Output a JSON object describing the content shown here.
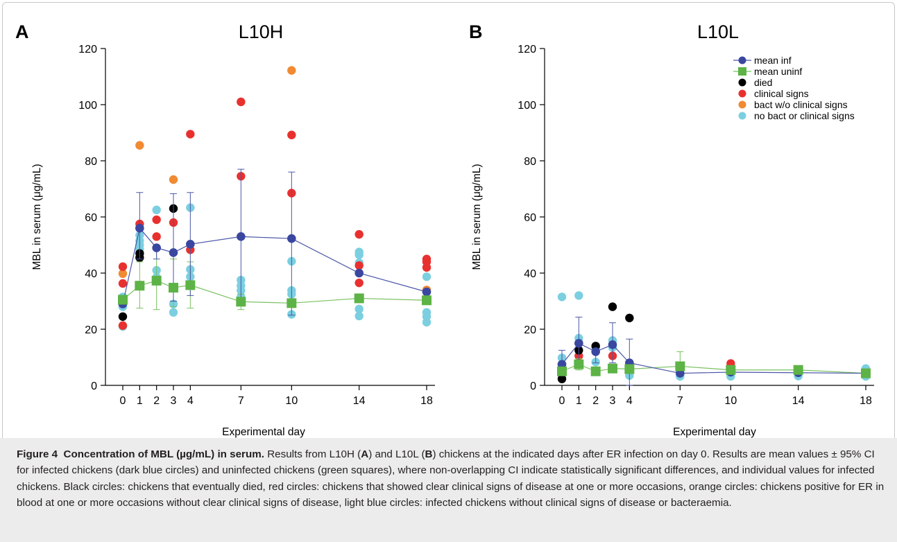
{
  "figure": {
    "label": "Figure 4",
    "title": "Concentration of MBL (µg/mL) in serum.",
    "text_1": " Results from L10H (",
    "text_2": "A",
    "text_3": ") and L10L (",
    "text_4": "B",
    "text_5": ") chickens at the indicated days after ER infection on day 0. Results are mean values ± 95% CI for infected chickens (dark blue circles) and uninfected chickens (green squares), where non-overlapping CI indicate statistically significant differences, and individual values for infected chickens. Black circles: chickens that eventually died, red circles: chickens that showed clear clinical signs of disease at one or more occasions, orange circles: chickens positive for ER in blood at one or more occasions without clear clinical signs of disease, light blue circles: infected chickens without clinical signs of disease or bacteraemia."
  },
  "colors": {
    "mean_inf": "#3a47a0",
    "mean_uninf": "#5db346",
    "died": "#000000",
    "clinical": "#e8312f",
    "bact": "#f08a33",
    "no_bact": "#7bcfe0",
    "mean_inf_line": "#4a55a8",
    "mean_uninf_line": "#78c05e"
  },
  "chart_data": [
    {
      "type": "scatter",
      "panel": "A",
      "title": "L10H",
      "xlabel": "Experimental day",
      "ylabel": "MBL in serum (μg/mL)",
      "xticks": [
        0,
        1,
        2,
        3,
        4,
        7,
        10,
        14,
        18
      ],
      "yticks": [
        0,
        20,
        40,
        60,
        80,
        100,
        120
      ],
      "ylim": [
        0,
        120
      ],
      "grid": false,
      "legend": null,
      "individual_points": {
        "died": [
          [
            0,
            24.5
          ],
          [
            1,
            45.5
          ],
          [
            1,
            47
          ],
          [
            3,
            63
          ]
        ],
        "clinical_signs": [
          [
            0,
            42.3
          ],
          [
            0,
            36.3
          ],
          [
            0,
            21.3
          ],
          [
            1,
            57.5
          ],
          [
            2,
            59
          ],
          [
            2,
            53
          ],
          [
            3,
            58
          ],
          [
            4,
            89.5
          ],
          [
            4,
            48.3
          ],
          [
            7,
            101
          ],
          [
            7,
            74.5
          ],
          [
            10,
            89.2
          ],
          [
            10,
            68.5
          ],
          [
            14,
            53.8
          ],
          [
            14,
            42.7
          ],
          [
            14,
            36.5
          ],
          [
            18,
            45
          ],
          [
            18,
            44
          ],
          [
            18,
            42
          ]
        ],
        "bact_no_clinical": [
          [
            0,
            39.8
          ],
          [
            1,
            85.5
          ],
          [
            3,
            73.3
          ],
          [
            10,
            112.2
          ],
          [
            18,
            34
          ]
        ],
        "no_bact_or_clinical": [
          [
            0,
            31.5
          ],
          [
            0,
            29.5
          ],
          [
            0,
            28
          ],
          [
            0,
            21
          ],
          [
            1,
            53.5
          ],
          [
            1,
            51.5
          ],
          [
            1,
            50
          ],
          [
            1,
            48.5
          ],
          [
            2,
            62.5
          ],
          [
            2,
            41
          ],
          [
            2,
            38.5
          ],
          [
            3,
            29
          ],
          [
            3,
            26
          ],
          [
            4,
            63.3
          ],
          [
            4,
            41.3
          ],
          [
            4,
            38.7
          ],
          [
            7,
            37.5
          ],
          [
            7,
            35.5
          ],
          [
            7,
            33.8
          ],
          [
            7,
            31.5
          ],
          [
            10,
            44.2
          ],
          [
            10,
            33.8
          ],
          [
            10,
            32.5
          ],
          [
            10,
            25.3
          ],
          [
            14,
            47.5
          ],
          [
            14,
            46.5
          ],
          [
            14,
            43.7
          ],
          [
            14,
            27.2
          ],
          [
            14,
            24.7
          ],
          [
            18,
            38.7
          ],
          [
            18,
            26
          ],
          [
            18,
            24.5
          ],
          [
            18,
            22.5
          ]
        ]
      },
      "series": [
        {
          "name": "mean inf",
          "x": [
            0,
            1,
            2,
            3,
            4,
            7,
            10,
            14,
            18
          ],
          "y": [
            29,
            56,
            49,
            47.3,
            50.3,
            53,
            52.3,
            40,
            33.3
          ],
          "ci_low": [
            29,
            45,
            45,
            30,
            32,
            29,
            25,
            40,
            33.3
          ],
          "ci_high": [
            29,
            68.7,
            49,
            68.3,
            68.7,
            77,
            76,
            40,
            33.3
          ]
        },
        {
          "name": "mean uninf",
          "x": [
            0,
            1,
            2,
            3,
            4,
            7,
            10,
            14,
            18
          ],
          "y": [
            30.5,
            35.5,
            37.3,
            34.8,
            35.7,
            29.8,
            29.3,
            31,
            30.3
          ],
          "ci_low": [
            30.5,
            27.5,
            27,
            28,
            27.5,
            27,
            29.3,
            31,
            30.3
          ],
          "ci_high": [
            30.5,
            44,
            49,
            45,
            44,
            32.5,
            29.3,
            31,
            30.3
          ]
        }
      ]
    },
    {
      "type": "scatter",
      "panel": "B",
      "title": "L10L",
      "xlabel": "Experimental day",
      "ylabel": "MBL in serum (μg/mL)",
      "xticks": [
        0,
        1,
        2,
        3,
        4,
        7,
        10,
        14,
        18
      ],
      "yticks": [
        0,
        20,
        40,
        60,
        80,
        100,
        120
      ],
      "ylim": [
        0,
        120
      ],
      "grid": false,
      "legend": {
        "placement": "top-right",
        "entries": [
          "mean inf",
          "mean uninf",
          "died",
          "clinical signs",
          "bact w/o clinical signs",
          "no bact or clinical signs"
        ]
      },
      "individual_points": {
        "died": [
          [
            0,
            2.3
          ],
          [
            1,
            12.5
          ],
          [
            2,
            14
          ],
          [
            3,
            28
          ],
          [
            4,
            24
          ]
        ],
        "clinical_signs": [
          [
            1,
            10.5
          ],
          [
            3,
            10.5
          ],
          [
            10,
            7.8
          ]
        ],
        "bact_no_clinical": [],
        "no_bact_or_clinical": [
          [
            0,
            31.5
          ],
          [
            0,
            9.8
          ],
          [
            0,
            4
          ],
          [
            1,
            32
          ],
          [
            1,
            16.8
          ],
          [
            2,
            13.5
          ],
          [
            2,
            8.3
          ],
          [
            3,
            16
          ],
          [
            3,
            13.5
          ],
          [
            4,
            6.5
          ],
          [
            4,
            3.5
          ],
          [
            7,
            4
          ],
          [
            7,
            3.2
          ],
          [
            10,
            4.5
          ],
          [
            10,
            3.2
          ],
          [
            14,
            5
          ],
          [
            14,
            3.3
          ],
          [
            18,
            6
          ],
          [
            18,
            3.2
          ]
        ]
      },
      "series": [
        {
          "name": "mean inf",
          "x": [
            0,
            1,
            2,
            3,
            4,
            7,
            10,
            14,
            18
          ],
          "y": [
            7.5,
            15,
            12,
            14.5,
            8,
            4.3,
            4.7,
            4.5,
            4.3
          ],
          "ci_low": [
            7.5,
            8,
            8,
            8,
            0,
            4.3,
            4.7,
            4.5,
            4.3
          ],
          "ci_high": [
            12.5,
            24.3,
            12,
            22.3,
            16.5,
            4.3,
            4.7,
            4.5,
            4.3
          ]
        },
        {
          "name": "mean uninf",
          "x": [
            0,
            1,
            2,
            3,
            4,
            7,
            10,
            14,
            18
          ],
          "y": [
            5,
            7.5,
            5,
            6,
            5.8,
            6.8,
            5.5,
            5.5,
            4.3
          ],
          "ci_low": [
            5,
            5.5,
            5,
            6,
            5.8,
            4,
            5.5,
            5.5,
            4.3
          ],
          "ci_high": [
            5,
            9.5,
            5,
            6,
            5.8,
            12,
            5.5,
            5.5,
            4.3
          ]
        }
      ]
    }
  ]
}
